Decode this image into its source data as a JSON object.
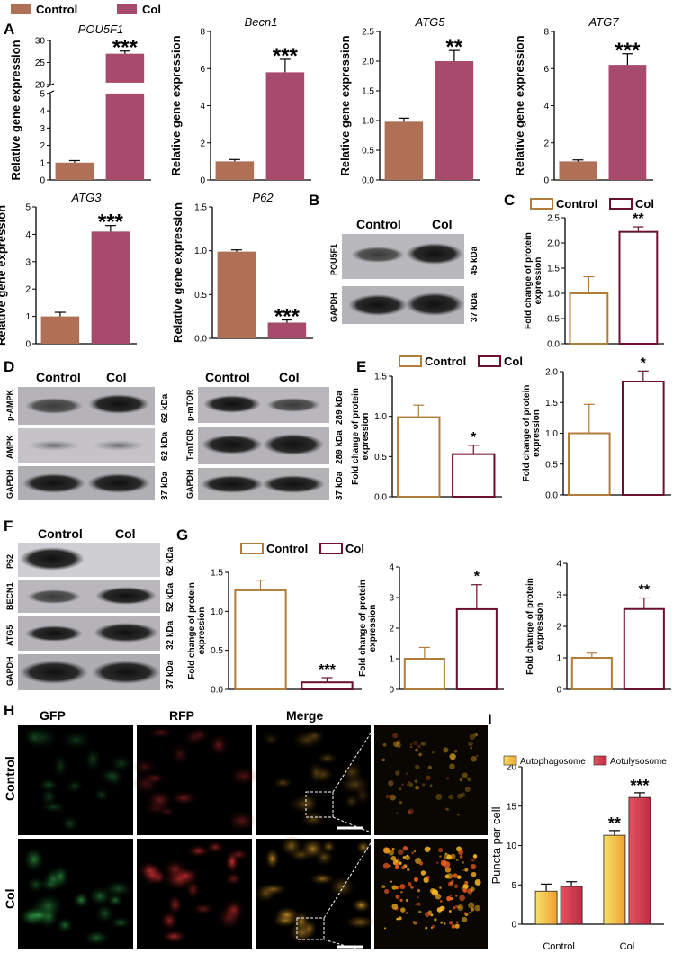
{
  "colors": {
    "control_fill": "#b07055",
    "col_fill": "#a84a6b",
    "control_outline": "#b07d3a",
    "col_outline": "#6b1030",
    "bar_yellow": "#f5c34a",
    "bar_red": "#d23b4f"
  },
  "legend_top": {
    "control": "Control",
    "col": "Col"
  },
  "panel_labels": [
    "A",
    "B",
    "C",
    "D",
    "E",
    "F",
    "G",
    "H",
    "I"
  ],
  "gene_ylabel": "Relative gene expression",
  "protein_ylabel_1": "Fold change of protein",
  "protein_ylabel_2": "expression",
  "blots": {
    "B": {
      "cols": [
        "Control",
        "Col"
      ],
      "rows": [
        {
          "name": "POU5F1",
          "size": "45 kDa"
        },
        {
          "name": "GAPDH",
          "size": "37 kDa"
        }
      ]
    },
    "D_left": {
      "cols": [
        "Control",
        "Col"
      ],
      "rows": [
        {
          "name": "p-AMPK",
          "size": "62 kDa"
        },
        {
          "name": "AMPK",
          "size": "62 kDa"
        },
        {
          "name": "GAPDH",
          "size": "37 kDa"
        }
      ]
    },
    "D_right": {
      "cols": [
        "Control",
        "Col"
      ],
      "rows": [
        {
          "name": "p-mTOR",
          "size": "289 kDa"
        },
        {
          "name": "T-mTOR",
          "size": "289 kDa"
        },
        {
          "name": "GAPDH",
          "size": "37 kDa"
        }
      ]
    },
    "F": {
      "cols": [
        "Control",
        "Col"
      ],
      "rows": [
        {
          "name": "P62",
          "size": "62 kDa"
        },
        {
          "name": "BECN1",
          "size": "52 kDa"
        },
        {
          "name": "ATG5",
          "size": "32 kDa"
        },
        {
          "name": "GAPDH",
          "size": "37 kDa"
        }
      ]
    }
  },
  "microscopy": {
    "columns": [
      "GFP",
      "RFP",
      "Merge"
    ],
    "rows": [
      "Control",
      "Col"
    ]
  },
  "chart_data": [
    {
      "id": "pou5f1",
      "type": "bar",
      "title": "POU5F1",
      "ylabel": "Relative gene expression",
      "categories": [
        "Control",
        "Col"
      ],
      "values": [
        1.0,
        27.0
      ],
      "errors": [
        0.12,
        0.6
      ],
      "significance": "***",
      "ylim": [
        0,
        30
      ],
      "axis_break": [
        5,
        20
      ],
      "yticks": [
        0,
        1,
        2,
        3,
        4,
        5,
        20,
        25,
        30
      ]
    },
    {
      "id": "becn1",
      "type": "bar",
      "title": "Becn1",
      "ylabel": "Relative gene expression",
      "categories": [
        "Control",
        "Col"
      ],
      "values": [
        1.0,
        5.8
      ],
      "errors": [
        0.1,
        0.7
      ],
      "significance": "***",
      "ylim": [
        0,
        8
      ],
      "yticks": [
        0,
        2,
        4,
        6,
        8
      ]
    },
    {
      "id": "atg5",
      "type": "bar",
      "title": "ATG5",
      "ylabel": "Relative gene expression",
      "categories": [
        "Control",
        "Col"
      ],
      "values": [
        0.98,
        2.0
      ],
      "errors": [
        0.06,
        0.18
      ],
      "significance": "**",
      "ylim": [
        0,
        2.5
      ],
      "yticks": [
        "0.0",
        "0.5",
        "1.0",
        "1.5",
        "2.0",
        "2.5"
      ]
    },
    {
      "id": "atg7",
      "type": "bar",
      "title": "ATG7",
      "ylabel": "Relative gene expression",
      "categories": [
        "Control",
        "Col"
      ],
      "values": [
        1.0,
        6.2
      ],
      "errors": [
        0.08,
        0.6
      ],
      "significance": "***",
      "ylim": [
        0,
        8
      ],
      "yticks": [
        0,
        2,
        4,
        6,
        8
      ]
    },
    {
      "id": "atg3",
      "type": "bar",
      "title": "ATG3",
      "ylabel": "Relative gene expression",
      "categories": [
        "Control",
        "Col"
      ],
      "values": [
        1.0,
        4.1
      ],
      "errors": [
        0.15,
        0.22
      ],
      "significance": "***",
      "ylim": [
        0,
        5
      ],
      "yticks": [
        0,
        1,
        2,
        3,
        4,
        5
      ]
    },
    {
      "id": "p62",
      "type": "bar",
      "title": "P62",
      "ylabel": "Relative gene expression",
      "categories": [
        "Control",
        "Col"
      ],
      "values": [
        0.99,
        0.18
      ],
      "errors": [
        0.02,
        0.03
      ],
      "significance": "***",
      "ylim": [
        0,
        1.5
      ],
      "yticks": [
        "0.0",
        "0.5",
        "1.0",
        "1.5"
      ]
    },
    {
      "id": "c_pou5f1",
      "type": "bar",
      "outline": true,
      "ylabel": "Fold change of protein expression",
      "categories": [
        "Control",
        "Col"
      ],
      "values": [
        1.0,
        2.22
      ],
      "errors": [
        0.33,
        0.1
      ],
      "significance": "**",
      "ylim": [
        0,
        2.5
      ],
      "yticks": [
        "0.0",
        "0.5",
        "1.0",
        "1.5",
        "2.0",
        "2.5"
      ],
      "legend": [
        "Control",
        "Col"
      ]
    },
    {
      "id": "e_ampk",
      "type": "bar",
      "outline": true,
      "ylabel": "Fold change of protein expression",
      "categories": [
        "Control",
        "Col"
      ],
      "values": [
        0.99,
        0.53
      ],
      "errors": [
        0.15,
        0.11
      ],
      "significance": "*",
      "ylim": [
        0,
        1.5
      ],
      "yticks": [
        "0.0",
        "0.5",
        "1.0",
        "1.5"
      ],
      "legend": [
        "Control",
        "Col"
      ]
    },
    {
      "id": "e_mtor",
      "type": "bar",
      "outline": true,
      "ylabel": "Fold change of protein expression",
      "categories": [
        "Control",
        "Col"
      ],
      "values": [
        1.0,
        1.84
      ],
      "errors": [
        0.47,
        0.17
      ],
      "significance": "*",
      "ylim": [
        0,
        2.0
      ],
      "yticks": [
        "0.0",
        "0.5",
        "1.0",
        "1.5",
        "2.0"
      ]
    },
    {
      "id": "g_p62",
      "type": "bar",
      "outline": true,
      "ylabel": "Fold change of protein expression",
      "categories": [
        "Control",
        "Col"
      ],
      "values": [
        1.27,
        0.09
      ],
      "errors": [
        0.13,
        0.06
      ],
      "significance": "***",
      "ylim": [
        0,
        1.5
      ],
      "yticks": [
        "0.0",
        "0.5",
        "1.0",
        "1.5"
      ],
      "legend": [
        "Control",
        "Col"
      ]
    },
    {
      "id": "g_becn1",
      "type": "bar",
      "outline": true,
      "ylabel": "Fold change of protein expression",
      "categories": [
        "Control",
        "Col"
      ],
      "values": [
        1.0,
        2.62
      ],
      "errors": [
        0.37,
        0.8
      ],
      "significance": "*",
      "ylim": [
        0,
        4
      ],
      "yticks": [
        0,
        1,
        2,
        3,
        4
      ]
    },
    {
      "id": "g_atg5",
      "type": "bar",
      "outline": true,
      "ylabel": "Fold change of protein expression",
      "categories": [
        "Control",
        "Col"
      ],
      "values": [
        1.0,
        2.55
      ],
      "errors": [
        0.15,
        0.35
      ],
      "significance": "**",
      "ylim": [
        0,
        4
      ],
      "yticks": [
        0,
        1,
        2,
        3,
        4
      ]
    },
    {
      "id": "i_puncta",
      "type": "bar",
      "grouped": true,
      "ylabel": "Puncta per cell",
      "categories": [
        "Control",
        "Col"
      ],
      "series": [
        {
          "name": "Autophagosome",
          "values": [
            4.2,
            11.3
          ],
          "errors": [
            0.9,
            0.6
          ],
          "significance": [
            "",
            "**"
          ]
        },
        {
          "name": "Aotulysosome",
          "values": [
            4.8,
            16.1
          ],
          "errors": [
            0.6,
            0.6
          ],
          "significance": [
            "",
            "***"
          ]
        }
      ],
      "ylim": [
        0,
        20
      ],
      "yticks": [
        0,
        5,
        10,
        15,
        20
      ]
    }
  ]
}
